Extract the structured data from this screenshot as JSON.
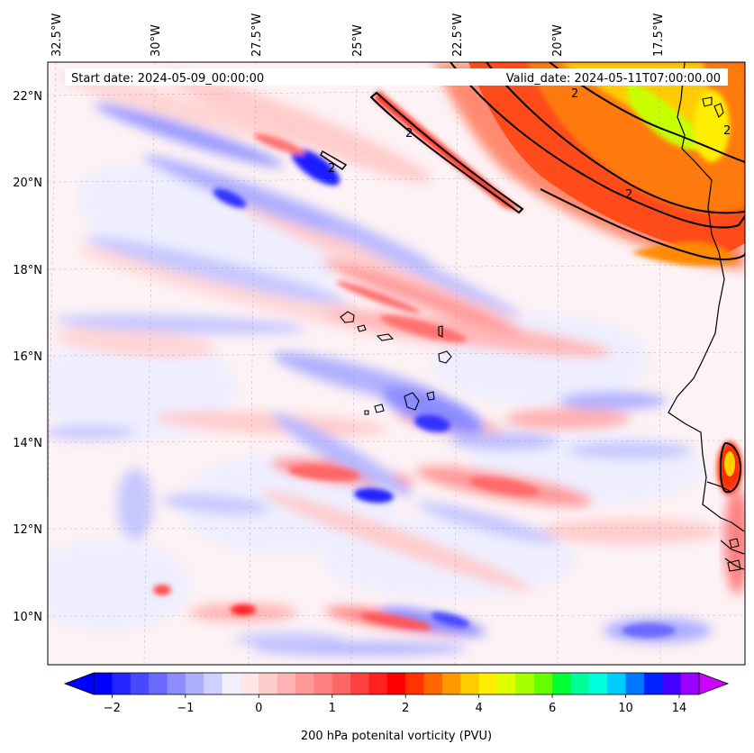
{
  "header": {
    "start_date": "Start date: 2024-05-09_00:00:00",
    "valid_date": "Valid_date: 2024-05-11T07:00:00.00"
  },
  "axes": {
    "lon_labels": [
      "32.5°W",
      "30°W",
      "27.5°W",
      "25°W",
      "22.5°W",
      "20°W",
      "17.5°W"
    ],
    "lat_labels": [
      "22°N",
      "20°N",
      "18°N",
      "16°N",
      "14°N",
      "12°N",
      "10°N"
    ]
  },
  "contour_labels": [
    "2",
    "2",
    "2",
    "2",
    "2"
  ],
  "colorbar": {
    "title": "200 hPa potenital vorticity (PVU)",
    "tick_labels": [
      "−2",
      "−1",
      "0",
      "1",
      "2",
      "4",
      "6",
      "10",
      "14"
    ],
    "colors": [
      "#0000ff",
      "#2424ff",
      "#4848ff",
      "#6a6aff",
      "#8c8cff",
      "#aeaeff",
      "#d0d0ff",
      "#f0f0ff",
      "#ffe6e6",
      "#ffcccc",
      "#ffb3b3",
      "#ff9999",
      "#ff8080",
      "#ff6666",
      "#ff4040",
      "#ff2020",
      "#ff0000",
      "#ff3300",
      "#ff6600",
      "#ff9900",
      "#ffcc00",
      "#ffee00",
      "#e0ff00",
      "#a8ff00",
      "#66ff00",
      "#00ff33",
      "#00ff99",
      "#00ffdd",
      "#00ccff",
      "#0077ff",
      "#0022ff",
      "#4400ff",
      "#9900ff"
    ],
    "under_color": "#0000ff",
    "over_color": "#cc00ff"
  }
}
